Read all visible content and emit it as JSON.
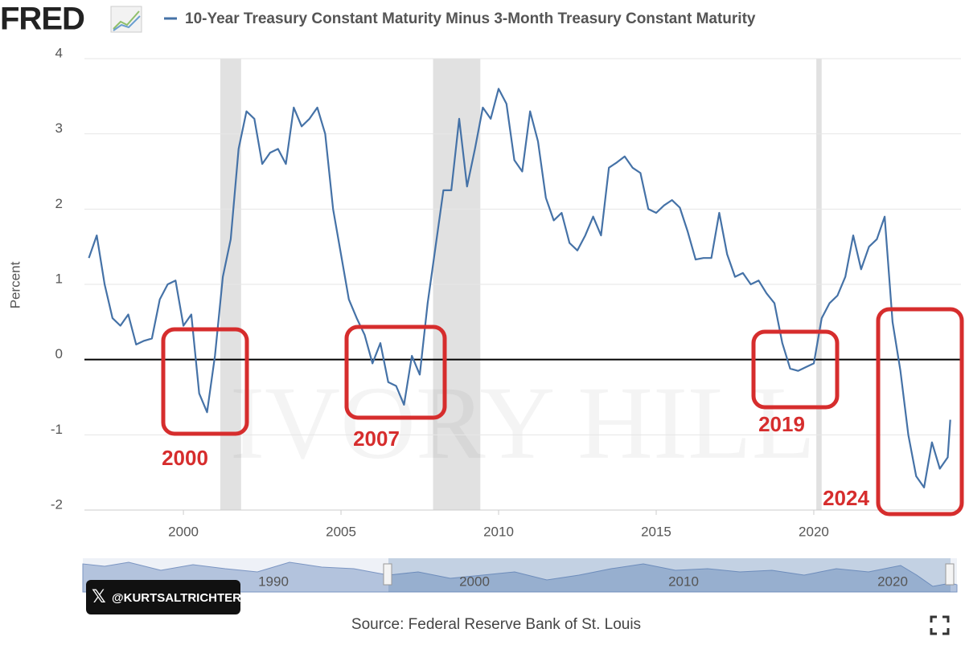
{
  "header": {
    "logo": "FRED"
  },
  "chart_data": {
    "type": "line",
    "y_label": "Percent",
    "x": [
      1997.0,
      1997.25,
      1997.5,
      1997.75,
      1998.0,
      1998.25,
      1998.5,
      1998.75,
      1999.0,
      1999.25,
      1999.5,
      1999.75,
      2000.0,
      2000.25,
      2000.5,
      2000.75,
      2001.0,
      2001.25,
      2001.5,
      2001.75,
      2002.0,
      2002.25,
      2002.5,
      2002.75,
      2003.0,
      2003.25,
      2003.5,
      2003.75,
      2004.0,
      2004.25,
      2004.5,
      2004.75,
      2005.0,
      2005.25,
      2005.5,
      2005.75,
      2006.0,
      2006.25,
      2006.5,
      2006.75,
      2007.0,
      2007.25,
      2007.5,
      2007.75,
      2008.0,
      2008.25,
      2008.5,
      2008.75,
      2009.0,
      2009.25,
      2009.5,
      2009.75,
      2010.0,
      2010.25,
      2010.5,
      2010.75,
      2011.0,
      2011.25,
      2011.5,
      2011.75,
      2012.0,
      2012.25,
      2012.5,
      2012.75,
      2013.0,
      2013.25,
      2013.5,
      2013.75,
      2014.0,
      2014.25,
      2014.5,
      2014.75,
      2015.0,
      2015.25,
      2015.5,
      2015.75,
      2016.0,
      2016.25,
      2016.5,
      2016.75,
      2017.0,
      2017.25,
      2017.5,
      2017.75,
      2018.0,
      2018.25,
      2018.5,
      2018.75,
      2019.0,
      2019.25,
      2019.5,
      2019.75,
      2020.0,
      2020.25,
      2020.5,
      2020.75,
      2021.0,
      2021.25,
      2021.5,
      2021.75,
      2022.0,
      2022.25,
      2022.5,
      2022.75,
      2023.0,
      2023.25,
      2023.5,
      2023.75,
      2024.0,
      2024.25,
      2024.33
    ],
    "series": [
      {
        "name": "10-Year Treasury Constant Maturity Minus 3-Month Treasury Constant Maturity",
        "color": "#4572a7",
        "values": [
          1.35,
          1.65,
          1.0,
          0.55,
          0.45,
          0.6,
          0.2,
          0.25,
          0.28,
          0.8,
          1.0,
          1.05,
          0.45,
          0.6,
          -0.45,
          -0.7,
          0.05,
          1.1,
          1.6,
          2.8,
          3.3,
          3.2,
          2.6,
          2.75,
          2.8,
          2.6,
          3.35,
          3.1,
          3.2,
          3.35,
          3.0,
          2.0,
          1.4,
          0.8,
          0.55,
          0.33,
          -0.05,
          0.22,
          -0.3,
          -0.35,
          -0.6,
          0.05,
          -0.2,
          0.75,
          1.5,
          2.25,
          2.25,
          3.2,
          2.3,
          2.8,
          3.35,
          3.2,
          3.6,
          3.4,
          2.65,
          2.5,
          3.3,
          2.9,
          2.15,
          1.85,
          1.95,
          1.55,
          1.45,
          1.65,
          1.9,
          1.65,
          2.55,
          2.62,
          2.7,
          2.55,
          2.48,
          2.0,
          1.95,
          2.05,
          2.12,
          2.02,
          1.7,
          1.33,
          1.35,
          1.35,
          1.95,
          1.4,
          1.1,
          1.15,
          1.0,
          1.05,
          0.88,
          0.75,
          0.22,
          -0.12,
          -0.15,
          -0.1,
          -0.05,
          0.55,
          0.75,
          0.85,
          1.1,
          1.65,
          1.2,
          1.5,
          1.6,
          1.9,
          0.5,
          -0.15,
          -1.0,
          -1.55,
          -1.7,
          -1.1,
          -1.45,
          -1.3,
          -0.8
        ]
      }
    ],
    "xlim": [
      1996.86,
      2024.67
    ],
    "ylim": [
      -2,
      4
    ],
    "xticks": [
      2000,
      2005,
      2010,
      2015,
      2020
    ],
    "yticks": [
      -2,
      -1,
      0,
      1,
      2,
      3,
      4
    ],
    "grid": true,
    "recessions": [
      [
        2001.17,
        2001.83
      ],
      [
        2007.92,
        2009.42
      ],
      [
        2020.08,
        2020.25
      ]
    ],
    "annotations": [
      {
        "label": "2000"
      },
      {
        "label": "2007"
      },
      {
        "label": "2019"
      },
      {
        "label": "2024"
      }
    ],
    "watermark": "IVORY HILL",
    "source": "Source: Federal Reserve Bank of St. Louis"
  },
  "navigator": {
    "ticks": [
      "1990",
      "2000",
      "2010",
      "2020"
    ]
  },
  "credit": "@KURTSALTRICHTER"
}
